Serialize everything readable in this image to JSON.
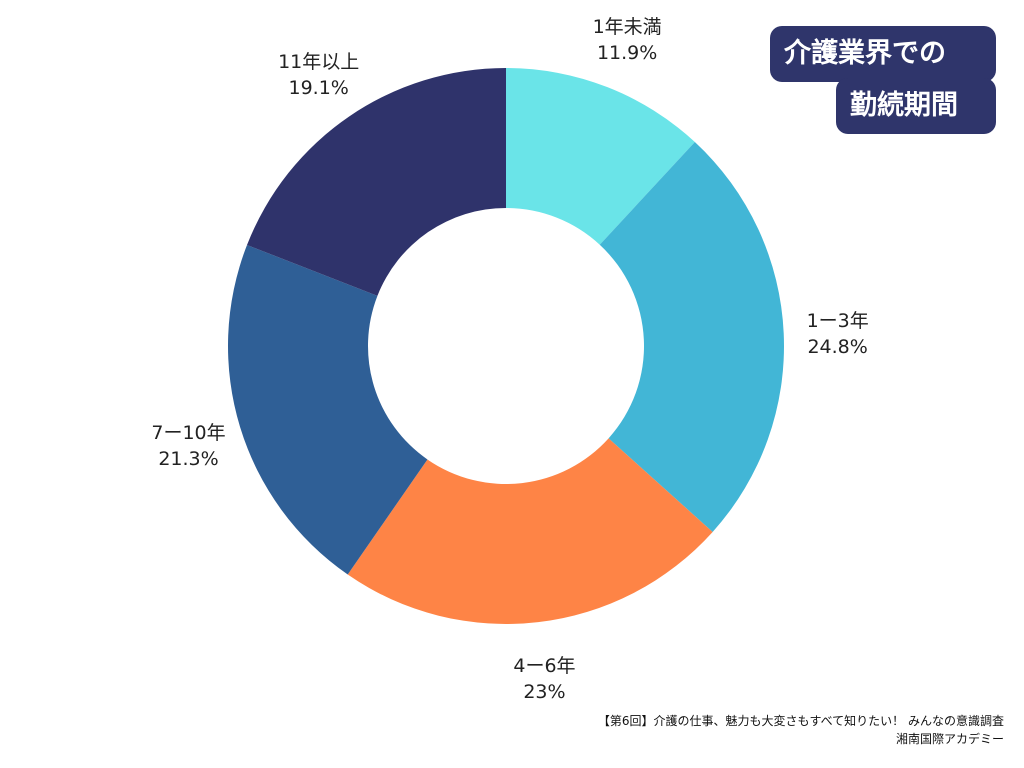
{
  "title": {
    "line1": "介護業界での",
    "line2": "勤続期間"
  },
  "source": {
    "line1": "【第6回】介護の仕事、魅力も大変さもすべて知りたい！ みんなの意識調査",
    "line2": "湘南国際アカデミー"
  },
  "chart_data": {
    "type": "pie",
    "subtype": "donut",
    "start_angle_deg": 0,
    "direction": "clockwise",
    "categories": [
      "1年未満",
      "1ー3年",
      "4ー6年",
      "7ー10年",
      "11年以上"
    ],
    "values": [
      11.9,
      24.8,
      23,
      21.3,
      19.1
    ],
    "value_labels": [
      "11.9%",
      "24.8%",
      "23%",
      "21.3%",
      "19.1%"
    ],
    "colors": [
      "#6ae4e8",
      "#42b6d6",
      "#fe8446",
      "#2f5f96",
      "#2f336b"
    ],
    "legend": "none"
  }
}
